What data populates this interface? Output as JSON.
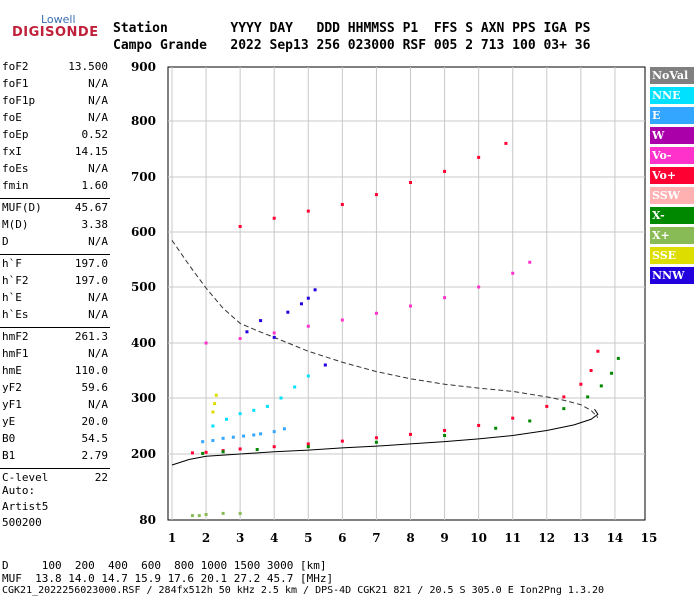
{
  "logo": {
    "top": "Lowell",
    "bottom": "DIGISONDE"
  },
  "header": {
    "line1": "Station        YYYY DAY   DDD HHMMSS P1  FFS S AXN PPS IGA PS",
    "line2": "Campo Grande   2022 Sep13 256 023000 RSF 005 2 713 100 03+ 36"
  },
  "params": [
    {
      "name": "foF2",
      "value": "13.500"
    },
    {
      "name": "foF1",
      "value": "N/A"
    },
    {
      "name": "foF1p",
      "value": "N/A"
    },
    {
      "name": "foE",
      "value": "N/A"
    },
    {
      "name": "foEp",
      "value": "0.52"
    },
    {
      "name": "fxI",
      "value": "14.15"
    },
    {
      "name": "foEs",
      "value": "N/A"
    },
    {
      "name": "fmin",
      "value": "1.60"
    },
    {
      "name": "MUF(D)",
      "value": "45.67"
    },
    {
      "name": "M(D)",
      "value": "3.38"
    },
    {
      "name": "D",
      "value": "N/A"
    },
    {
      "name": "h`F",
      "value": "197.0"
    },
    {
      "name": "h`F2",
      "value": "197.0"
    },
    {
      "name": "h`E",
      "value": "N/A"
    },
    {
      "name": "h`Es",
      "value": "N/A"
    },
    {
      "name": "hmF2",
      "value": "261.3"
    },
    {
      "name": "hmF1",
      "value": "N/A"
    },
    {
      "name": "hmE",
      "value": "110.0"
    },
    {
      "name": "yF2",
      "value": "59.6"
    },
    {
      "name": "yF1",
      "value": "N/A"
    },
    {
      "name": "yE",
      "value": "20.0"
    },
    {
      "name": "B0",
      "value": "54.5"
    },
    {
      "name": "B1",
      "value": "2.79"
    },
    {
      "name": "C-level",
      "value": "22"
    }
  ],
  "autoscale": {
    "line1": "Auto:",
    "line2": "Artist5",
    "line3": "500200"
  },
  "legend": [
    {
      "label": "NoVal",
      "color": "#808080"
    },
    {
      "label": "NNE",
      "color": "#00e0ff"
    },
    {
      "label": "E",
      "color": "#33a6ff"
    },
    {
      "label": "W",
      "color": "#aa00aa"
    },
    {
      "label": "Vo-",
      "color": "#ff33cc"
    },
    {
      "label": "Vo+",
      "color": "#ff0033"
    },
    {
      "label": "SSW",
      "color": "#ffb0b0"
    },
    {
      "label": "X-",
      "color": "#008800"
    },
    {
      "label": "X+",
      "color": "#88bb55"
    },
    {
      "label": "SSE",
      "color": "#dddd00"
    },
    {
      "label": "NNW",
      "color": "#2200dd"
    }
  ],
  "bottom": {
    "d_line": "D     100  200  400  600  800 1000 1500 3000 [km]",
    "muf_line": "MUF  13.8 14.0 14.7 15.9 17.6 20.1 27.2 45.7 [MHz]",
    "file_line": "CGK21_2022256023000.RSF / 284fx512h 50 kHz 2.5 km / DPS-4D CGK21 821 / 20.5 S 305.0 E Ion2Png 1.3.20"
  },
  "chart_data": {
    "type": "scatter",
    "x_ticks": [
      1,
      2,
      3,
      4,
      5,
      6,
      7,
      8,
      9,
      10,
      11,
      12,
      13,
      14,
      15
    ],
    "y_ticks": [
      80,
      200,
      300,
      400,
      500,
      600,
      700,
      800,
      900
    ],
    "xlim": [
      1,
      15
    ],
    "ylim": [
      80,
      900
    ],
    "grid": true,
    "series": [
      {
        "name": "Vo+",
        "color": "#ff0033",
        "x": [
          1.6,
          2.0,
          2.5,
          3.0,
          4.0,
          5.0,
          6.0,
          7.0,
          8.0,
          9.0,
          10.0,
          11.0,
          12.0,
          12.5,
          13.0,
          13.3,
          13.5
        ],
        "y": [
          202,
          203,
          206,
          209,
          213,
          218,
          223,
          229,
          235,
          242,
          251,
          264,
          285,
          302,
          325,
          350,
          385
        ]
      },
      {
        "name": "X-",
        "color": "#008800",
        "x": [
          1.9,
          2.5,
          3.5,
          5.0,
          7.0,
          9.0,
          10.5,
          11.5,
          12.5,
          13.2,
          13.6,
          13.9,
          14.1
        ],
        "y": [
          201,
          204,
          208,
          213,
          221,
          233,
          246,
          259,
          281,
          302,
          322,
          345,
          372
        ]
      },
      {
        "name": "Vo-",
        "color": "#ff33cc",
        "x": [
          2.0,
          3.0,
          4.0,
          5.0,
          6.0,
          7.0,
          8.0,
          9.0,
          10.0,
          11.0,
          11.5
        ],
        "y": [
          400,
          408,
          418,
          430,
          441,
          453,
          466,
          481,
          500,
          525,
          545
        ]
      },
      {
        "name": "Vo+",
        "color": "#ff0033",
        "x": [
          3.0,
          4.0,
          5.0,
          6.0,
          7.0,
          8.0,
          9.0,
          10.0,
          10.8
        ],
        "y": [
          610,
          625,
          638,
          650,
          668,
          690,
          710,
          735,
          760
        ]
      },
      {
        "name": "E",
        "color": "#33a6ff",
        "x": [
          1.9,
          2.2,
          2.5,
          2.8,
          3.1,
          3.4,
          3.6,
          4.0,
          4.3
        ],
        "y": [
          222,
          224,
          228,
          230,
          232,
          234,
          236,
          240,
          245
        ]
      },
      {
        "name": "NNE",
        "color": "#00e0ff",
        "x": [
          2.2,
          2.6,
          3.0,
          3.4,
          3.8,
          4.2,
          4.6,
          5.0
        ],
        "y": [
          250,
          262,
          272,
          278,
          285,
          300,
          320,
          340
        ]
      },
      {
        "name": "NNW",
        "color": "#2200dd",
        "x": [
          3.2,
          3.6,
          4.0,
          4.4,
          4.8,
          5.0,
          5.2,
          5.5
        ],
        "y": [
          420,
          440,
          410,
          455,
          470,
          480,
          495,
          360
        ]
      },
      {
        "name": "SSE",
        "color": "#dddd00",
        "x": [
          2.2,
          2.25,
          2.3
        ],
        "y": [
          275,
          290,
          305
        ]
      },
      {
        "name": "X+",
        "color": "#88bb55",
        "x": [
          1.6,
          1.8,
          2.0,
          2.5,
          3.0
        ],
        "y": [
          88,
          88,
          90,
          92,
          92
        ]
      }
    ],
    "profile": {
      "x": [
        1.0,
        1.5,
        2.0,
        3.0,
        4.0,
        5.0,
        6.0,
        7.0,
        8.0,
        9.0,
        10.0,
        11.0,
        12.0,
        12.8,
        13.3,
        13.5,
        13.4
      ],
      "y": [
        180,
        190,
        196,
        200,
        204,
        207,
        211,
        214,
        218,
        222,
        227,
        233,
        242,
        252,
        262,
        271,
        280
      ]
    },
    "muf_curve": {
      "x": [
        1.0,
        1.5,
        2.0,
        2.5,
        3.0,
        3.5,
        4.0,
        5.0,
        6.0,
        7.0,
        8.0,
        9.0,
        10.0,
        11.0,
        12.0,
        12.5,
        13.0,
        13.3,
        13.5
      ],
      "y": [
        585,
        540,
        498,
        462,
        435,
        422,
        410,
        385,
        365,
        348,
        335,
        325,
        318,
        312,
        302,
        296,
        288,
        278,
        265
      ]
    }
  }
}
